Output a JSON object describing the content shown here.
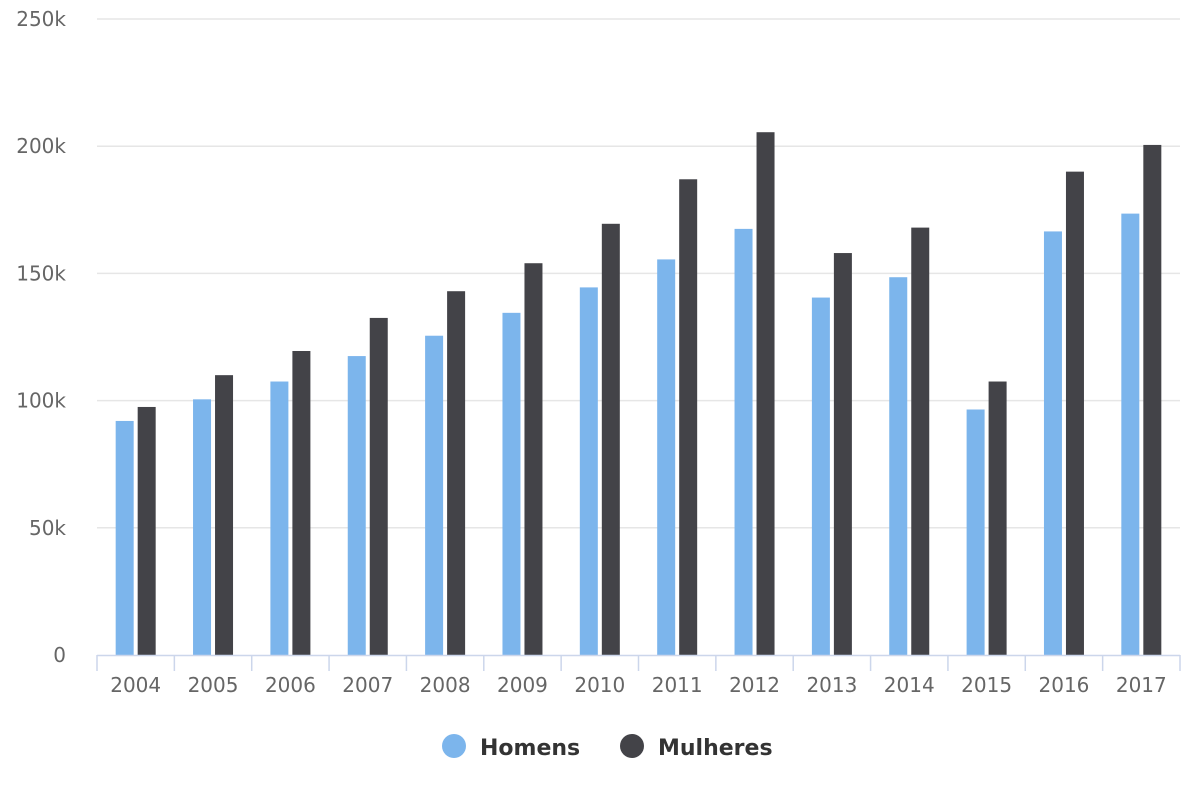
{
  "chart_data": {
    "type": "bar",
    "categories": [
      "2004",
      "2005",
      "2006",
      "2007",
      "2008",
      "2009",
      "2010",
      "2011",
      "2012",
      "2013",
      "2014",
      "2015",
      "2016",
      "2017"
    ],
    "series": [
      {
        "name": "Homens",
        "color": "#7cb5ec",
        "values": [
          92000,
          100500,
          107500,
          117500,
          125500,
          134500,
          144500,
          155500,
          167500,
          140500,
          148500,
          96500,
          166500,
          173500
        ]
      },
      {
        "name": "Mulheres",
        "color": "#434348",
        "values": [
          97500,
          110000,
          119500,
          132500,
          143000,
          154000,
          169500,
          187000,
          205500,
          158000,
          168000,
          107500,
          190000,
          200500
        ]
      }
    ],
    "y_ticks": [
      "0",
      "50k",
      "100k",
      "150k",
      "200k",
      "250k"
    ],
    "ylim": [
      0,
      250000
    ],
    "grid": true,
    "legend_position": "bottom-center",
    "title": "",
    "xlabel": "",
    "ylabel": ""
  }
}
